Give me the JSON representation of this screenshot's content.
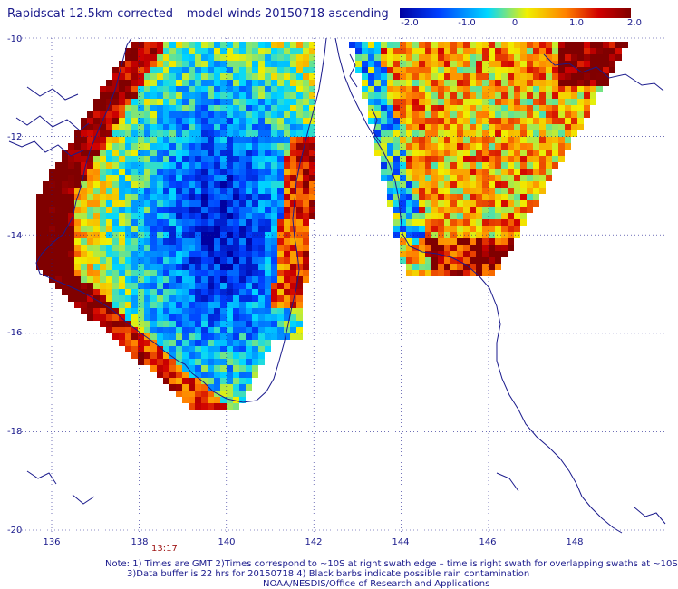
{
  "header": {
    "title": "Rapidscat 12.5km corrected – model winds 20150718 ascending"
  },
  "colorbar": {
    "tick_labels": [
      "-2.0",
      "-1.0",
      "0",
      "1.0",
      "2.0"
    ],
    "range": [
      -2.0,
      2.0
    ],
    "colors": [
      "#0000a0",
      "#0040ff",
      "#00d8ff",
      "#f0f000",
      "#ff8000",
      "#d00000",
      "#800000"
    ]
  },
  "map": {
    "lat_labels": [
      "-10",
      "-12",
      "-14",
      "-16",
      "-18",
      "-20"
    ],
    "lon_labels": [
      "136",
      "138",
      "140",
      "142",
      "144",
      "146",
      "148"
    ],
    "lat_range": [
      -20,
      -10
    ],
    "lon_range": [
      135.5,
      149.5
    ],
    "grid": true,
    "coastline_color": "#1a1a8c",
    "time_label": "13:17"
  },
  "footer": {
    "note_line1": "Note: 1) Times are GMT 2)Times correspond to ~10S at right swath edge – time is right swath for overlapping swaths at ~10S",
    "note_line2": "3)Data buffer is 22 hrs for 20150718 4) Black barbs indicate possible rain contamination",
    "note_line3": "NOAA/NESDIS/Office of Research and Applications"
  }
}
